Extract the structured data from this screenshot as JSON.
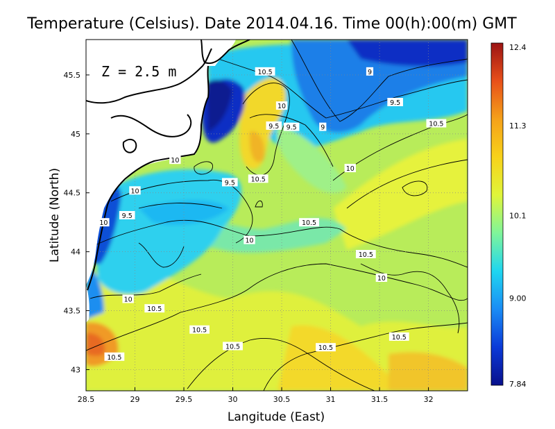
{
  "chart_data": {
    "type": "heatmap",
    "title": "Temperature (Celsius). Date 2014.04.16. Time 00(h):00(m) GMT",
    "xlabel": "Langitude (East)",
    "ylabel": "Latitude (North)",
    "annotation": "Z = 2.5 m",
    "xlim": [
      28.5,
      32.4
    ],
    "ylim": [
      42.82,
      45.8
    ],
    "xticks": [
      "28.5",
      "29",
      "29.5",
      "30",
      "30.5",
      "31",
      "31.5",
      "32"
    ],
    "yticks": [
      "43",
      "43.5",
      "44",
      "44.5",
      "45",
      "45.5"
    ],
    "colorbar": {
      "min": 7.84,
      "max": 12.4,
      "tick_labels": [
        "12.4",
        "11.3",
        "10.1",
        "9.00",
        "7.84"
      ],
      "tick_values": [
        12.4,
        11.3,
        10.1,
        9.0,
        7.84
      ],
      "colors": [
        "#08108c",
        "#0b3ad8",
        "#1a8cf5",
        "#1fd6f0",
        "#7ff59a",
        "#e0f53a",
        "#f8d21a",
        "#f5a11a",
        "#e8501a",
        "#9c1414"
      ]
    },
    "contour_labels": [
      {
        "text": "10.5",
        "lon": 30.33,
        "lat": 45.53
      },
      {
        "text": "9",
        "lon": 31.4,
        "lat": 45.53
      },
      {
        "text": "9.5",
        "lon": 31.66,
        "lat": 45.27
      },
      {
        "text": "10",
        "lon": 30.5,
        "lat": 45.24
      },
      {
        "text": "9.5",
        "lon": 30.42,
        "lat": 45.07
      },
      {
        "text": "9.5",
        "lon": 30.6,
        "lat": 45.06
      },
      {
        "text": "9",
        "lon": 30.92,
        "lat": 45.06
      },
      {
        "text": "10.5",
        "lon": 32.08,
        "lat": 45.09
      },
      {
        "text": "10",
        "lon": 29.41,
        "lat": 44.78
      },
      {
        "text": "10",
        "lon": 31.2,
        "lat": 44.71
      },
      {
        "text": "10.5",
        "lon": 30.26,
        "lat": 44.62
      },
      {
        "text": "9.5",
        "lon": 29.97,
        "lat": 44.59
      },
      {
        "text": "10",
        "lon": 29.0,
        "lat": 44.52
      },
      {
        "text": "9.5",
        "lon": 28.92,
        "lat": 44.31
      },
      {
        "text": "10",
        "lon": 28.68,
        "lat": 44.25
      },
      {
        "text": "10.5",
        "lon": 30.78,
        "lat": 44.25
      },
      {
        "text": "10",
        "lon": 30.17,
        "lat": 44.1
      },
      {
        "text": "10.5",
        "lon": 31.36,
        "lat": 43.98
      },
      {
        "text": "10",
        "lon": 31.52,
        "lat": 43.78
      },
      {
        "text": "10",
        "lon": 28.93,
        "lat": 43.6
      },
      {
        "text": "10.5",
        "lon": 29.2,
        "lat": 43.52
      },
      {
        "text": "10.5",
        "lon": 29.66,
        "lat": 43.34
      },
      {
        "text": "10.5",
        "lon": 31.7,
        "lat": 43.28
      },
      {
        "text": "10.5",
        "lon": 30.0,
        "lat": 43.2
      },
      {
        "text": "10.5",
        "lon": 30.95,
        "lat": 43.19
      },
      {
        "text": "10.5",
        "lon": 28.79,
        "lat": 43.11
      }
    ],
    "features": [
      {
        "name": "cold-core-north",
        "lon": 31.95,
        "lat": 45.65,
        "value": 8.4
      },
      {
        "name": "cold-core-crimea",
        "lon": 29.75,
        "lat": 45.3,
        "value": 8.2
      },
      {
        "name": "cold-coastal-strip",
        "lon": 28.7,
        "lat": 44.15,
        "value": 8.6
      },
      {
        "name": "warm-tongue-east",
        "lon": 30.2,
        "lat": 44.95,
        "value": 11.0
      },
      {
        "name": "warm-southwest-corner",
        "lon": 28.62,
        "lat": 43.2,
        "value": 11.6
      },
      {
        "name": "warm-south",
        "lon": 31.0,
        "lat": 43.0,
        "value": 10.9
      }
    ],
    "grid": true
  }
}
